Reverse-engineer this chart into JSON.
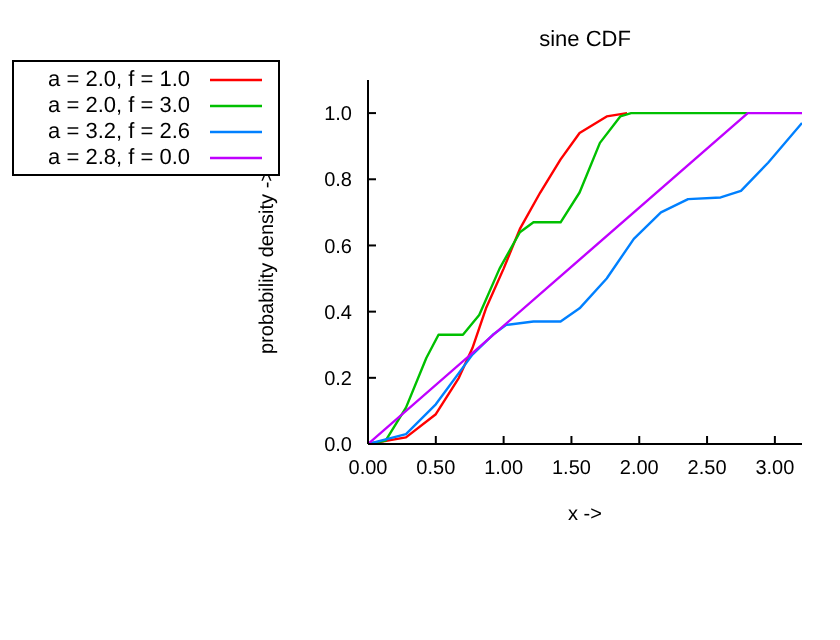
{
  "chart_data": {
    "type": "line",
    "title": "sine CDF",
    "xlabel": "x ->",
    "ylabel": "probability density ->",
    "xlim": [
      0,
      3.2
    ],
    "ylim": [
      0,
      1.1
    ],
    "xticks": [
      {
        "value": 0,
        "label": "0.00"
      },
      {
        "value": 0.5,
        "label": "0.50"
      },
      {
        "value": 1,
        "label": "1.00"
      },
      {
        "value": 1.5,
        "label": "1.50"
      },
      {
        "value": 2,
        "label": "2.00"
      },
      {
        "value": 2.5,
        "label": "2.50"
      },
      {
        "value": 3,
        "label": "3.00"
      }
    ],
    "yticks": [
      {
        "value": 0,
        "label": "0.0"
      },
      {
        "value": 0.2,
        "label": "0.2"
      },
      {
        "value": 0.4,
        "label": "0.4"
      },
      {
        "value": 0.6,
        "label": "0.6"
      },
      {
        "value": 0.8,
        "label": "0.8"
      },
      {
        "value": 1,
        "label": "1.0"
      }
    ],
    "legend": "left",
    "marker": "none",
    "line_style": "solid",
    "grid": false,
    "series": [
      {
        "name": "a = 2.0, f = 1.0",
        "color": "#ff0000",
        "x": [
          0,
          0.28,
          0.5,
          0.67,
          0.77,
          0.87,
          1.0,
          1.12,
          1.27,
          1.42,
          1.56,
          1.76,
          1.91
        ],
        "values": [
          0,
          0.02,
          0.09,
          0.2,
          0.29,
          0.41,
          0.53,
          0.65,
          0.76,
          0.86,
          0.94,
          0.99,
          1.0
        ]
      },
      {
        "name": "a = 2.0, f = 3.0",
        "color": "#00c000",
        "x": [
          0,
          0.13,
          0.28,
          0.43,
          0.52,
          0.7,
          0.82,
          0.97,
          1.12,
          1.22,
          1.42,
          1.56,
          1.71,
          1.86,
          1.94,
          2.8
        ],
        "values": [
          0,
          0.01,
          0.11,
          0.26,
          0.33,
          0.33,
          0.39,
          0.53,
          0.64,
          0.67,
          0.67,
          0.76,
          0.91,
          0.99,
          1.0,
          1.0
        ]
      },
      {
        "name": "a = 3.2, f = 2.6",
        "color": "#0080ff",
        "x": [
          0,
          0.28,
          0.5,
          0.77,
          0.92,
          1.02,
          1.22,
          1.42,
          1.56,
          1.76,
          1.96,
          2.16,
          2.36,
          2.6,
          2.75,
          2.95,
          3.2
        ],
        "values": [
          0,
          0.03,
          0.12,
          0.27,
          0.33,
          0.36,
          0.37,
          0.37,
          0.41,
          0.5,
          0.62,
          0.7,
          0.74,
          0.745,
          0.765,
          0.85,
          0.97
        ]
      },
      {
        "name": "a = 2.8, f = 0.0",
        "color": "#c000ff",
        "x": [
          0,
          2.8,
          3.2
        ],
        "values": [
          0,
          1,
          1
        ]
      }
    ]
  }
}
